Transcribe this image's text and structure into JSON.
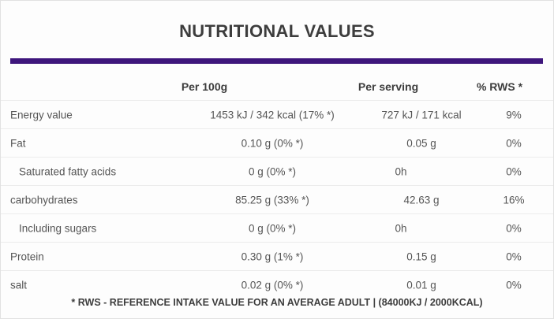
{
  "title": "NUTRITIONAL VALUES",
  "accent_color": "#3e167c",
  "table": {
    "columns": [
      "",
      "Per 100g",
      "Per serving",
      "% RWS *"
    ],
    "rows": [
      {
        "label": "Energy value",
        "indent": false,
        "per_100g": "1453 kJ / 342 kcal (17% *)",
        "per_serving": "727 kJ / 171 kcal",
        "rws": "9%"
      },
      {
        "label": "Fat",
        "indent": false,
        "per_100g": "0.10 g (0% *)",
        "per_serving": "0.05 g",
        "rws": "0%"
      },
      {
        "label": "Saturated fatty acids",
        "indent": true,
        "per_100g": "0 g (0% *)",
        "per_serving": "0h",
        "rws": "0%"
      },
      {
        "label": "carbohydrates",
        "indent": false,
        "per_100g": "85.25 g (33% *)",
        "per_serving": "42.63 g",
        "rws": "16%"
      },
      {
        "label": "Including sugars",
        "indent": true,
        "per_100g": "0 g (0% *)",
        "per_serving": "0h",
        "rws": "0%"
      },
      {
        "label": "Protein",
        "indent": false,
        "per_100g": "0.30 g (1% *)",
        "per_serving": "0.15 g",
        "rws": "0%"
      },
      {
        "label": "salt",
        "indent": false,
        "per_100g": "0.02 g (0% *)",
        "per_serving": "0.01 g",
        "rws": "0%"
      }
    ],
    "footnote": "* RWS - REFERENCE INTAKE VALUE FOR AN AVERAGE ADULT | (84000KJ / 2000KCAL)"
  }
}
